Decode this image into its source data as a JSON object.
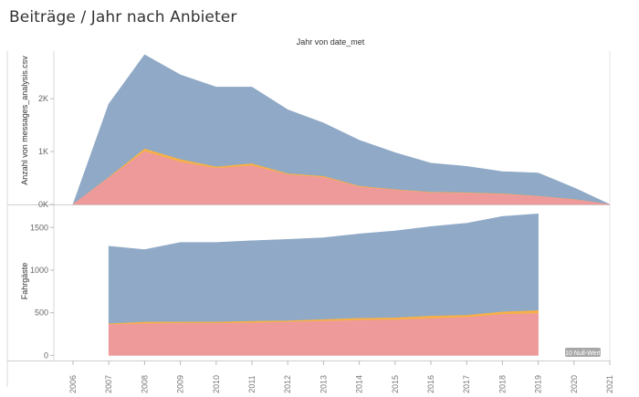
{
  "title": "Beiträge / Jahr nach Anbieter",
  "chart_data": [
    {
      "type": "area",
      "stacked": true,
      "header": "Jahr von date_met",
      "ylabel": "Anzahl von messages_analysis.csv",
      "x": [
        "2006",
        "2007",
        "2008",
        "2009",
        "2010",
        "2011",
        "2012",
        "2013",
        "2014",
        "2015",
        "2016",
        "2017",
        "2018",
        "2019",
        "2020",
        "2021"
      ],
      "ylim": [
        0,
        2900
      ],
      "yticks": [
        0,
        1000,
        2000
      ],
      "ytick_labels": [
        "0K",
        "1K",
        "2K"
      ],
      "series": [
        {
          "color": "#ee9a9b",
          "values": [
            0,
            500,
            1000,
            800,
            680,
            730,
            560,
            510,
            330,
            270,
            220,
            210,
            190,
            150,
            90,
            0
          ]
        },
        {
          "color": "#f5b04a",
          "values": [
            0,
            10,
            50,
            50,
            30,
            40,
            20,
            20,
            15,
            10,
            10,
            10,
            10,
            5,
            5,
            0
          ]
        },
        {
          "color": "#8fa9c6",
          "values": [
            0,
            1390,
            1780,
            1600,
            1510,
            1450,
            1210,
            1010,
            870,
            700,
            550,
            500,
            420,
            440,
            220,
            0
          ]
        }
      ]
    },
    {
      "type": "area",
      "stacked": true,
      "ylabel": "Fahrgäste",
      "x": [
        "2007",
        "2008",
        "2009",
        "2010",
        "2011",
        "2012",
        "2013",
        "2014",
        "2015",
        "2016",
        "2017",
        "2018",
        "2019"
      ],
      "ylim": [
        -60,
        1760
      ],
      "yticks": [
        0,
        500,
        1000,
        1500
      ],
      "ytick_labels": [
        "0",
        "500",
        "1000",
        "1500"
      ],
      "series": [
        {
          "color": "#ee9a9b",
          "values": [
            360,
            370,
            375,
            375,
            380,
            390,
            400,
            410,
            415,
            430,
            445,
            480,
            490
          ]
        },
        {
          "color": "#f5b04a",
          "values": [
            10,
            20,
            15,
            15,
            20,
            15,
            20,
            25,
            25,
            30,
            25,
            30,
            35
          ]
        },
        {
          "color": "#8fa9c6",
          "values": [
            910,
            850,
            935,
            935,
            945,
            955,
            960,
            990,
            1020,
            1050,
            1080,
            1120,
            1135
          ]
        }
      ]
    }
  ],
  "x_axis": {
    "ticks": [
      "2006",
      "2007",
      "2008",
      "2009",
      "2010",
      "2011",
      "2012",
      "2013",
      "2014",
      "2015",
      "2016",
      "2017",
      "2018",
      "2019",
      "2020",
      "2021"
    ]
  },
  "null_badge": "≥10 Null-Werte"
}
